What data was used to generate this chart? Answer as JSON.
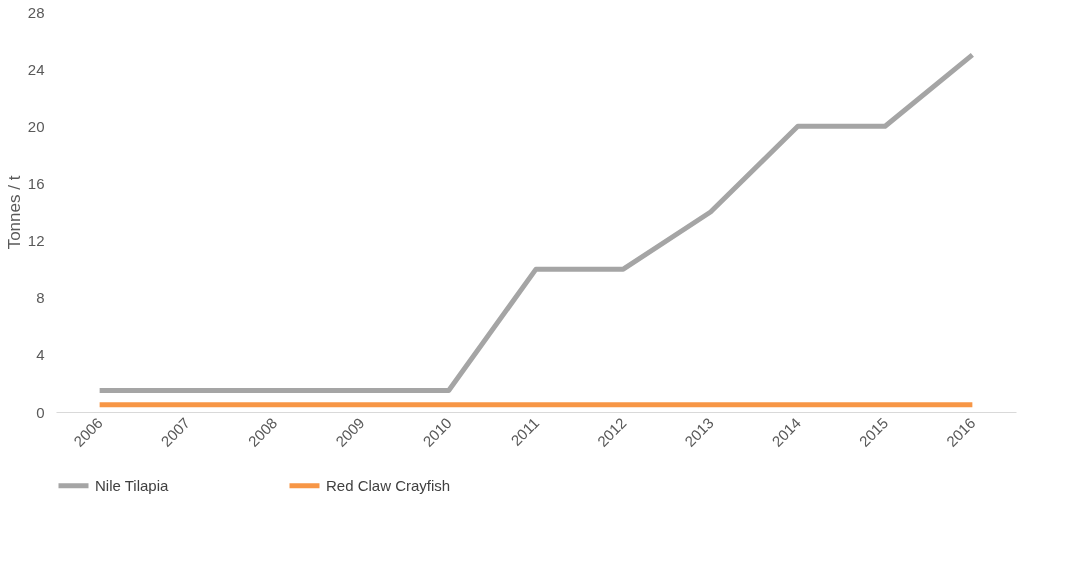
{
  "chart_data": {
    "type": "line",
    "ylabel": "Tonnes / t",
    "categories": [
      "2006",
      "2007",
      "2008",
      "2009",
      "2010",
      "2011",
      "2012",
      "2013",
      "2014",
      "2015",
      "2016"
    ],
    "series": [
      {
        "name": "Nile Tilapia",
        "color": "#a5a5a5",
        "values": [
          1.5,
          1.5,
          1.5,
          1.5,
          1.5,
          10,
          10,
          14,
          20,
          20,
          25
        ]
      },
      {
        "name": "Red Claw Crayfish",
        "color": "#f79646",
        "values": [
          0.5,
          0.5,
          0.5,
          0.5,
          0.5,
          0.5,
          0.5,
          0.5,
          0.5,
          0.5,
          0.5
        ]
      }
    ],
    "ylim": [
      0,
      28
    ],
    "yticks": [
      0,
      4,
      8,
      12,
      16,
      20,
      24,
      28
    ],
    "grid": false,
    "legend": "bottom",
    "marker": "none",
    "line_style": "solid"
  }
}
